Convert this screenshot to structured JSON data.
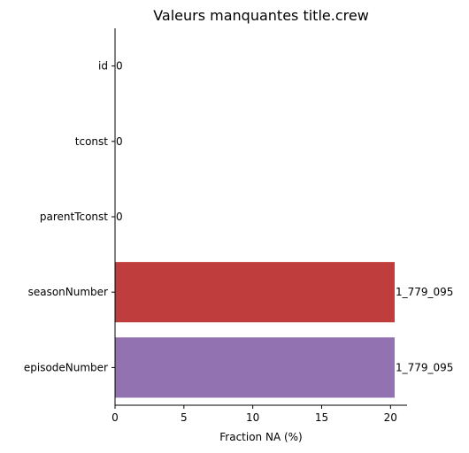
{
  "chart_data": {
    "type": "bar",
    "orientation": "horizontal",
    "title": "Valeurs manquantes title.crew",
    "xlabel": "Fraction NA (%)",
    "ylabel": "",
    "xlim": [
      0,
      21.2
    ],
    "xticks": [
      0,
      5,
      10,
      15,
      20
    ],
    "xtick_labels": [
      "0",
      "5",
      "10",
      "15",
      "20"
    ],
    "categories": [
      "id",
      "tconst",
      "parentTconst",
      "seasonNumber",
      "episodeNumber"
    ],
    "values": [
      0,
      0,
      0,
      20.3,
      20.3
    ],
    "data_labels": [
      "0",
      "0",
      "0",
      "1_779_095",
      "1_779_095"
    ],
    "colors": [
      "#1f77b4",
      "#ff7f0e",
      "#2ca02c",
      "#c03d3e",
      "#9372b2"
    ],
    "grid": false
  }
}
